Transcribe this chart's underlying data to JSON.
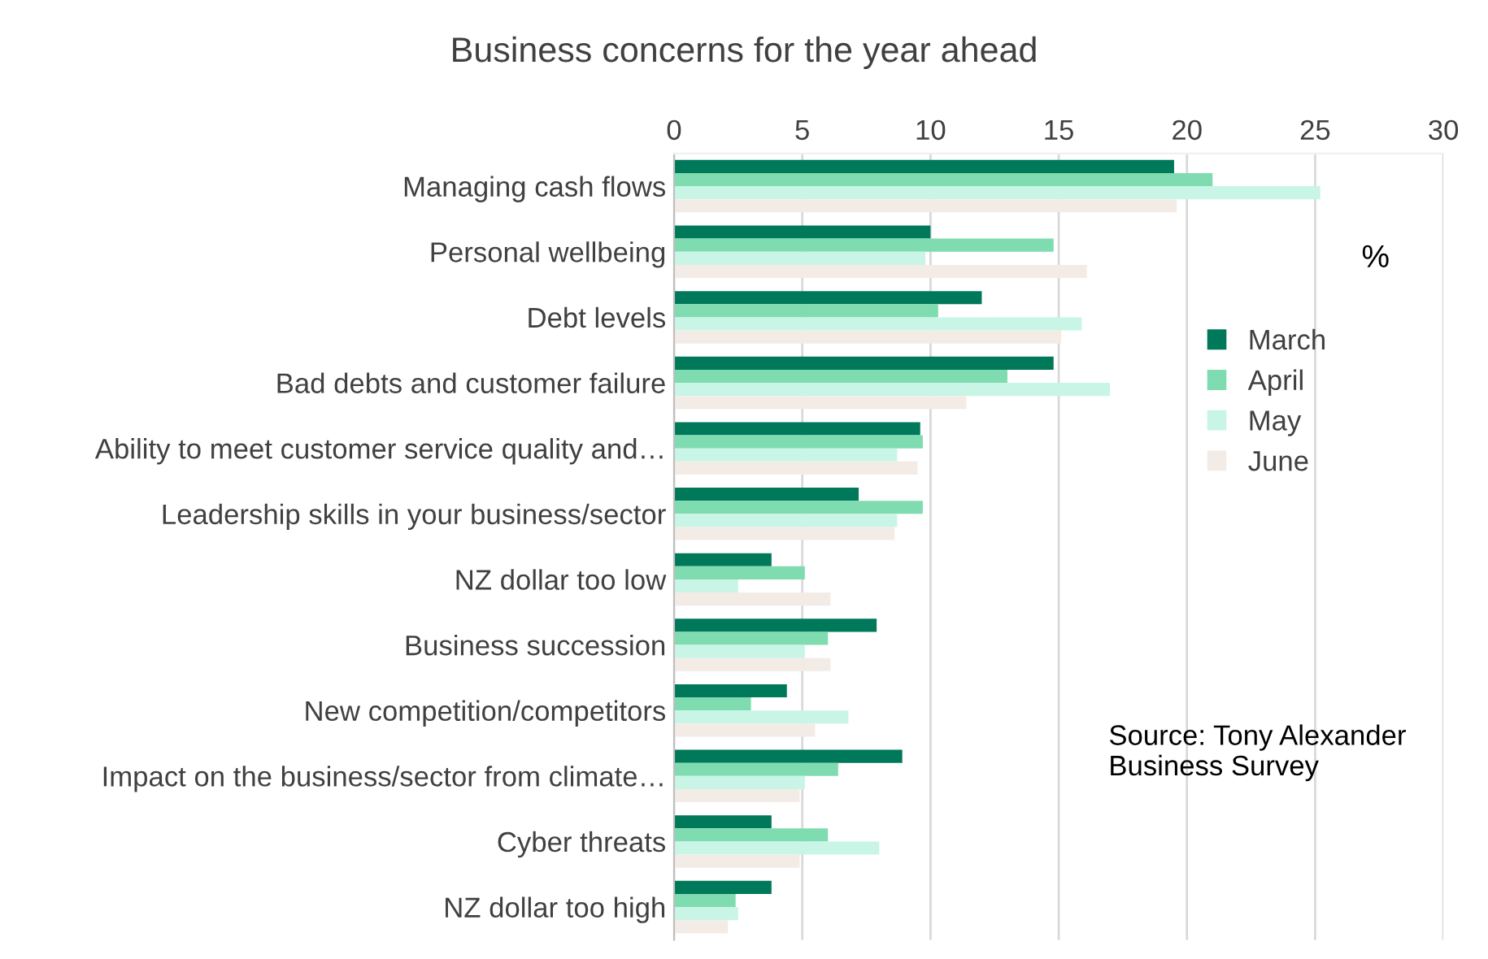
{
  "chart_data": {
    "type": "bar",
    "orientation": "horizontal",
    "title": "Business concerns for the year ahead",
    "categories": [
      "Managing cash flows",
      "Personal wellbeing",
      "Debt levels",
      "Bad debts and customer failure",
      "Ability to meet customer service quality and…",
      "Leadership skills in your business/sector",
      "NZ dollar too low",
      "Business succession",
      "New competition/competitors",
      "Impact on the business/sector from climate…",
      "Cyber threats",
      "NZ dollar too high"
    ],
    "series": [
      {
        "name": "March",
        "color": "#00785a",
        "values": [
          19.5,
          10.0,
          12.0,
          14.8,
          9.6,
          7.2,
          3.8,
          7.9,
          4.4,
          8.9,
          3.8,
          3.8
        ]
      },
      {
        "name": "April",
        "color": "#7fdcb0",
        "values": [
          21.0,
          14.8,
          10.3,
          13.0,
          9.7,
          9.7,
          5.1,
          6.0,
          3.0,
          6.4,
          6.0,
          2.4
        ]
      },
      {
        "name": "May",
        "color": "#c8f5e6",
        "values": [
          25.2,
          9.8,
          15.9,
          17.0,
          8.7,
          8.7,
          2.5,
          5.1,
          6.8,
          5.1,
          8.0,
          2.5
        ]
      },
      {
        "name": "June",
        "color": "#f3ece6",
        "values": [
          19.6,
          16.1,
          15.1,
          11.4,
          9.5,
          8.6,
          6.1,
          6.1,
          5.5,
          4.9,
          4.9,
          2.1
        ]
      }
    ],
    "xlim": [
      0,
      30
    ],
    "xticks": [
      0,
      5,
      10,
      15,
      20,
      25,
      30
    ],
    "grid": "x",
    "legend": "right",
    "annotations": [
      "%",
      "Source: Tony Alexander Business Survey"
    ]
  }
}
